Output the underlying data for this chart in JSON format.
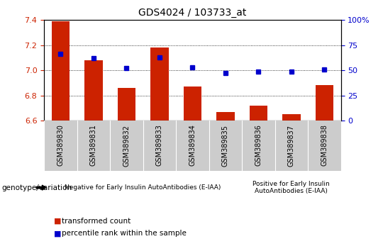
{
  "title": "GDS4024 / 103733_at",
  "samples": [
    "GSM389830",
    "GSM389831",
    "GSM389832",
    "GSM389833",
    "GSM389834",
    "GSM389835",
    "GSM389836",
    "GSM389837",
    "GSM389838"
  ],
  "bar_values": [
    7.39,
    7.08,
    6.86,
    7.18,
    6.87,
    6.67,
    6.72,
    6.65,
    6.88
  ],
  "percentile_values": [
    66,
    62,
    52,
    63,
    53,
    47,
    49,
    49,
    51
  ],
  "bar_bottom": 6.6,
  "ylim_left": [
    6.6,
    7.4
  ],
  "ylim_right": [
    0,
    100
  ],
  "bar_color": "#cc2200",
  "dot_color": "#0000cc",
  "n_group1": 6,
  "n_group2": 3,
  "group1_label": "Negative for Early Insulin AutoAntibodies (E-IAA)",
  "group2_label": "Positive for Early Insulin\nAutoAntibodies (E-IAA)",
  "group1_bg": "#aaddaa",
  "group2_bg": "#55cc55",
  "xtick_bg": "#cccccc",
  "genotype_label": "genotype/variation",
  "legend1": "transformed count",
  "legend2": "percentile rank within the sample",
  "left_yticks": [
    6.6,
    6.8,
    7.0,
    7.2,
    7.4
  ],
  "right_yticks": [
    0,
    25,
    50,
    75,
    100
  ],
  "left_tick_color": "#cc2200",
  "right_tick_color": "#0000cc"
}
